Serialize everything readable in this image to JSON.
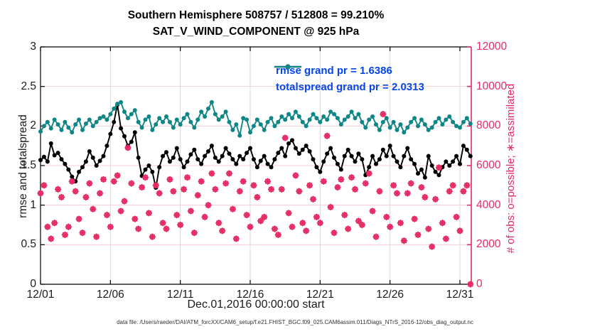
{
  "footer": "data file: /Users/raeder/DAI/ATM_forcXX/CAM6_setup/f.e21.FHIST_BGC.f09_025.CAM6assim.011/Diags_NTrS_2016-12/obs_diag_output.nc",
  "colors": {
    "rmse_line": "#000000",
    "totalspread_line": "#0e8686",
    "obs_pink": "#e52a63",
    "legend_text_blue": "#0645ec",
    "grid_vertical_gray": "#d9d9d9",
    "grid_horizontal_pink": "#f6ccd9",
    "tick_text": "#1a1a1a"
  },
  "chart_data": {
    "type": "line",
    "title_line1": "Southern Hemisphere 508757 / 512808 = 99.210%",
    "title_line2": "SAT_V_WIND_COMPONENT @ 925 hPa",
    "xlabel": "Dec.01,2016 00:00:00 start",
    "ylabel_left": "rmse and totalspread",
    "ylabel_right": "# of obs: o=possible; ∗=assimilated",
    "x_tick_labels": [
      "12/01",
      "12/06",
      "12/11",
      "12/16",
      "12/21",
      "12/26",
      "12/31"
    ],
    "x_tick_days": [
      0,
      5,
      10,
      15,
      20,
      25,
      30
    ],
    "y_left_ticks": [
      "0",
      "0.5",
      "1",
      "1.5",
      "2",
      "2.5",
      "3"
    ],
    "y_left_values": [
      0,
      0.5,
      1,
      1.5,
      2,
      2.5,
      3
    ],
    "y_right_ticks": [
      "0",
      "2000",
      "4000",
      "6000",
      "8000",
      "10000",
      "12000"
    ],
    "y_right_values": [
      0,
      2000,
      4000,
      6000,
      8000,
      10000,
      12000
    ],
    "ylim_left": [
      0,
      3
    ],
    "ylim_right": [
      0,
      12000
    ],
    "x_axis_days": 30.82,
    "points_per_day": 4,
    "grid": true,
    "legend": [
      {
        "label": "rmse grand pr = 1.6386",
        "color": "#000000"
      },
      {
        "label": "totalspread grand pr = 2.0313",
        "color": "#0e8686"
      }
    ],
    "series": [
      {
        "name": "rmse",
        "axis": "left",
        "style": "line-dot",
        "color": "#000000",
        "values": [
          1.57,
          1.61,
          1.55,
          1.78,
          1.63,
          1.66,
          1.58,
          1.52,
          1.45,
          1.36,
          1.3,
          1.42,
          1.48,
          1.55,
          1.68,
          1.6,
          1.5,
          1.56,
          1.62,
          1.75,
          1.9,
          2.05,
          2.27,
          1.97,
          1.87,
          1.75,
          1.8,
          1.92,
          1.6,
          1.37,
          1.45,
          1.5,
          1.42,
          1.22,
          1.48,
          1.62,
          1.67,
          1.55,
          1.6,
          1.72,
          1.58,
          1.48,
          1.55,
          1.64,
          1.7,
          1.58,
          1.52,
          1.62,
          1.68,
          1.75,
          1.6,
          1.55,
          1.62,
          1.72,
          1.65,
          1.58,
          1.52,
          1.62,
          1.58,
          1.66,
          1.72,
          1.58,
          1.48,
          1.56,
          1.62,
          1.52,
          1.48,
          1.58,
          1.66,
          1.72,
          1.62,
          1.78,
          1.82,
          1.72,
          1.65,
          1.7,
          1.75,
          1.68,
          1.58,
          1.48,
          1.42,
          1.55,
          1.65,
          1.72,
          1.6,
          1.52,
          1.45,
          1.62,
          1.7,
          1.62,
          1.55,
          1.65,
          1.58,
          1.38,
          1.48,
          1.62,
          1.52,
          1.58,
          1.7,
          1.62,
          1.75,
          1.62,
          1.55,
          1.48,
          1.62,
          1.72,
          1.58,
          1.52,
          1.4,
          1.45,
          1.35,
          1.62,
          1.5,
          1.42,
          1.38,
          1.48,
          1.55,
          1.5,
          1.55,
          1.62,
          1.52,
          1.75,
          1.7,
          1.62
        ]
      },
      {
        "name": "totalspread",
        "axis": "left",
        "style": "line-dot",
        "color": "#0e8686",
        "values": [
          1.93,
          2.0,
          2.05,
          1.97,
          2.08,
          2.02,
          1.95,
          2.05,
          1.98,
          1.92,
          2.02,
          2.08,
          1.95,
          2.03,
          2.08,
          2.0,
          2.05,
          2.1,
          2.12,
          2.08,
          2.15,
          2.22,
          2.28,
          2.3,
          2.18,
          2.1,
          2.15,
          2.2,
          2.05,
          1.98,
          2.08,
          2.12,
          1.95,
          2.02,
          2.1,
          2.05,
          2.12,
          2.05,
          1.98,
          2.08,
          2.02,
          2.1,
          2.15,
          2.05,
          1.98,
          2.08,
          2.18,
          2.12,
          2.22,
          2.3,
          2.15,
          2.08,
          2.12,
          2.18,
          2.05,
          1.95,
          2.02,
          1.88,
          2.1,
          2.08,
          1.92,
          2.0,
          2.08,
          2.02,
          1.95,
          2.05,
          2.1,
          2.0,
          2.05,
          2.12,
          2.08,
          2.15,
          2.1,
          2.18,
          2.12,
          2.05,
          2.0,
          2.08,
          2.15,
          2.1,
          2.05,
          2.12,
          2.08,
          2.18,
          2.15,
          2.1,
          2.02,
          2.08,
          2.12,
          2.18,
          2.1,
          2.15,
          2.05,
          1.98,
          2.08,
          2.12,
          2.02,
          1.95,
          2.05,
          2.1,
          1.98,
          2.05,
          1.95,
          2.02,
          1.92,
          1.98,
          2.05,
          2.1,
          2.0,
          2.08,
          2.02,
          1.95,
          1.98,
          2.05,
          2.1,
          2.02,
          2.08,
          2.12,
          2.05,
          2.0,
          1.98,
          2.05,
          2.1,
          2.03
        ]
      },
      {
        "name": "possible",
        "axis": "right",
        "style": "scatter-circle",
        "color": "#e52a63",
        "values": [
          4600,
          5000,
          2900,
          2300,
          3100,
          4800,
          4400,
          2500,
          2900,
          5200,
          4700,
          3300,
          2600,
          4400,
          5100,
          3800,
          2400,
          4600,
          5300,
          3500,
          2900,
          5200,
          5500,
          3700,
          4200,
          6900,
          5100,
          3300,
          2800,
          4900,
          5400,
          3600,
          2400,
          5000,
          4600,
          3100,
          2800,
          5300,
          4700,
          3500,
          3000,
          4800,
          5400,
          3700,
          2600,
          4500,
          5200,
          3400,
          4000,
          5600,
          4800,
          3100,
          2700,
          5100,
          5600,
          3800,
          2300,
          4700,
          5200,
          3500,
          2900,
          5000,
          4400,
          3200,
          3400,
          5200,
          4800,
          2800,
          2500,
          4800,
          7400,
          3600,
          2900,
          5500,
          4700,
          3100,
          2700,
          5000,
          4300,
          3400,
          3100,
          5200,
          7500,
          3900,
          2600,
          4900,
          5300,
          3500,
          2800,
          5400,
          4800,
          3200,
          3000,
          5100,
          5600,
          3700,
          2400,
          4700,
          8600,
          3400,
          2900,
          5000,
          4600,
          3100,
          2200,
          4600,
          5100,
          3300,
          2500,
          4900,
          4400,
          2800,
          1900,
          4300,
          5900,
          3100,
          2300,
          4700,
          5000,
          3400,
          2700,
          4700,
          5000,
          0
        ]
      },
      {
        "name": "assimilated",
        "axis": "right",
        "style": "scatter-asterisk",
        "color": "#e52a63",
        "values": [
          4600,
          5000,
          2900,
          2300,
          3100,
          4800,
          4400,
          2500,
          2900,
          5200,
          4700,
          3300,
          2600,
          4400,
          5100,
          3800,
          2400,
          4600,
          5300,
          3500,
          2900,
          5200,
          5500,
          3700,
          4200,
          6900,
          5100,
          3300,
          2800,
          4900,
          5400,
          3600,
          2400,
          5000,
          4600,
          3100,
          2800,
          5300,
          4700,
          3500,
          3000,
          4800,
          5400,
          3700,
          2600,
          4500,
          5200,
          3400,
          4000,
          5600,
          4800,
          3100,
          2700,
          5100,
          5600,
          3800,
          2300,
          4700,
          5200,
          3500,
          2900,
          5000,
          4400,
          3200,
          3400,
          5200,
          4800,
          2800,
          2500,
          4800,
          7400,
          3600,
          2900,
          5500,
          4700,
          3100,
          2700,
          5000,
          4300,
          3400,
          3100,
          5200,
          7500,
          3900,
          2600,
          4900,
          5300,
          3500,
          2800,
          5400,
          4800,
          3200,
          3000,
          5100,
          5600,
          3700,
          2400,
          4700,
          8600,
          3400,
          2900,
          5000,
          4600,
          3100,
          2200,
          4600,
          5100,
          3300,
          2500,
          4900,
          4400,
          2800,
          1900,
          4300,
          5900,
          3100,
          2300,
          4700,
          5000,
          3400,
          2700,
          4700,
          5000,
          0
        ]
      }
    ]
  }
}
